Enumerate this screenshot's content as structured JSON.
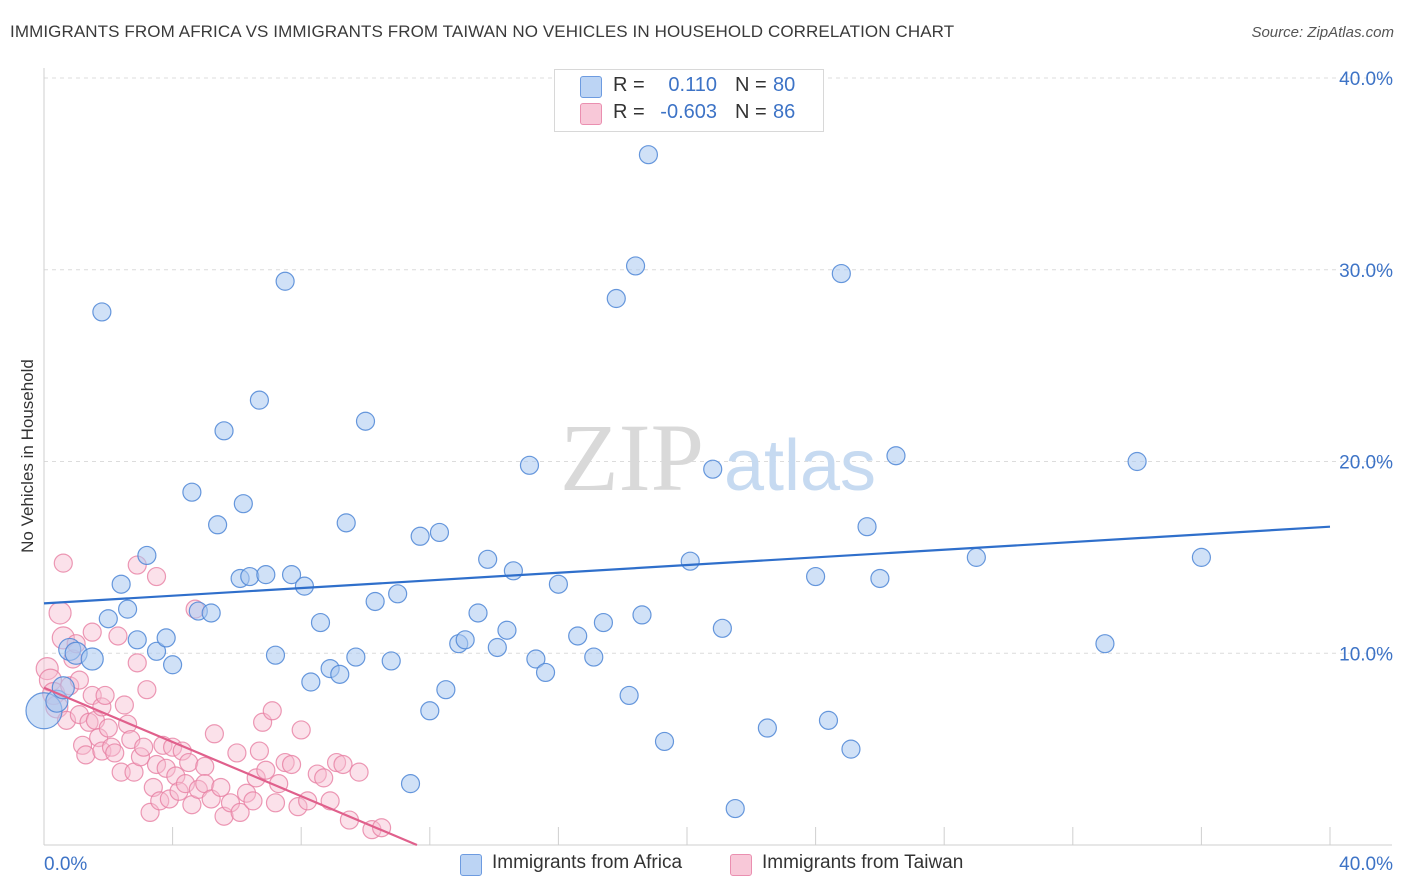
{
  "title": "IMMIGRANTS FROM AFRICA VS IMMIGRANTS FROM TAIWAN NO VEHICLES IN HOUSEHOLD CORRELATION CHART",
  "source": "Source: ZipAtlas.com",
  "watermark": {
    "zip": "ZIP",
    "atlas": "atlas"
  },
  "legend_top": {
    "rows": [
      {
        "r_label": "R =",
        "r_value": "0.110",
        "n_label": "N =",
        "n_value": "80"
      },
      {
        "r_label": "R =",
        "r_value": "-0.603",
        "n_label": "N =",
        "n_value": "86"
      }
    ]
  },
  "colors": {
    "africa_fill": "#a9c8f0",
    "africa_stroke": "#4d86d6",
    "africa_line": "#2f6fcb",
    "taiwan_fill": "#f7bcd0",
    "taiwan_stroke": "#e77fa2",
    "taiwan_line": "#e0608c",
    "tick_text": "#3d73c6",
    "grid": "#dcdcdc"
  },
  "chart_data": {
    "type": "scatter",
    "title": "IMMIGRANTS FROM AFRICA VS IMMIGRANTS FROM TAIWAN NO VEHICLES IN HOUSEHOLD CORRELATION CHART",
    "xlabel": "",
    "ylabel": "No Vehicles in Household",
    "xlim": [
      0,
      40
    ],
    "ylim": [
      0,
      40
    ],
    "x_tick_labels": [
      "0.0%",
      "40.0%"
    ],
    "y_tick_labels": [
      "10.0%",
      "20.0%",
      "30.0%",
      "40.0%"
    ],
    "y_ticks": [
      10,
      20,
      30,
      40
    ],
    "legend_position": "bottom",
    "series": [
      {
        "name": "Immigrants from Africa",
        "R": 0.11,
        "N": 80,
        "trend": {
          "x": [
            0,
            40
          ],
          "y": [
            12.6,
            16.6
          ]
        },
        "points": [
          [
            0.0,
            7.0
          ],
          [
            0.4,
            7.5
          ],
          [
            0.6,
            8.2
          ],
          [
            0.8,
            10.2
          ],
          [
            1.0,
            10.0
          ],
          [
            1.5,
            9.7
          ],
          [
            1.8,
            27.8
          ],
          [
            2.0,
            11.8
          ],
          [
            2.4,
            13.6
          ],
          [
            2.6,
            12.3
          ],
          [
            2.9,
            10.7
          ],
          [
            3.2,
            15.1
          ],
          [
            3.5,
            10.1
          ],
          [
            3.8,
            10.8
          ],
          [
            4.0,
            9.4
          ],
          [
            4.6,
            18.4
          ],
          [
            4.8,
            12.2
          ],
          [
            5.2,
            12.1
          ],
          [
            5.4,
            16.7
          ],
          [
            5.6,
            21.6
          ],
          [
            6.1,
            13.9
          ],
          [
            6.2,
            17.8
          ],
          [
            6.4,
            14.0
          ],
          [
            6.7,
            23.2
          ],
          [
            6.9,
            14.1
          ],
          [
            7.2,
            9.9
          ],
          [
            7.5,
            29.4
          ],
          [
            7.7,
            14.1
          ],
          [
            8.1,
            13.5
          ],
          [
            8.3,
            8.5
          ],
          [
            8.6,
            11.6
          ],
          [
            8.9,
            9.2
          ],
          [
            9.2,
            8.9
          ],
          [
            9.4,
            16.8
          ],
          [
            9.7,
            9.8
          ],
          [
            10.0,
            22.1
          ],
          [
            10.3,
            12.7
          ],
          [
            10.8,
            9.6
          ],
          [
            11.0,
            13.1
          ],
          [
            11.4,
            3.2
          ],
          [
            11.7,
            16.1
          ],
          [
            12.0,
            7.0
          ],
          [
            12.3,
            16.3
          ],
          [
            12.5,
            8.1
          ],
          [
            12.9,
            10.5
          ],
          [
            13.1,
            10.7
          ],
          [
            13.5,
            12.1
          ],
          [
            13.8,
            14.9
          ],
          [
            14.1,
            10.3
          ],
          [
            14.4,
            11.2
          ],
          [
            14.6,
            14.3
          ],
          [
            15.1,
            19.8
          ],
          [
            15.3,
            9.7
          ],
          [
            15.6,
            9.0
          ],
          [
            16.0,
            13.6
          ],
          [
            16.6,
            10.9
          ],
          [
            17.1,
            9.8
          ],
          [
            17.4,
            11.6
          ],
          [
            17.8,
            28.5
          ],
          [
            18.2,
            7.8
          ],
          [
            18.4,
            30.2
          ],
          [
            18.6,
            12.0
          ],
          [
            18.8,
            36.0
          ],
          [
            19.3,
            5.4
          ],
          [
            20.1,
            14.8
          ],
          [
            20.8,
            19.6
          ],
          [
            21.1,
            11.3
          ],
          [
            21.5,
            1.9
          ],
          [
            22.5,
            6.1
          ],
          [
            24.0,
            14.0
          ],
          [
            24.4,
            6.5
          ],
          [
            24.8,
            29.8
          ],
          [
            25.1,
            5.0
          ],
          [
            25.6,
            16.6
          ],
          [
            26.0,
            13.9
          ],
          [
            26.5,
            20.3
          ],
          [
            29.0,
            15.0
          ],
          [
            33.0,
            10.5
          ],
          [
            34.0,
            20.0
          ],
          [
            36.0,
            15.0
          ]
        ]
      },
      {
        "name": "Immigrants from Taiwan",
        "R": -0.603,
        "N": 86,
        "trend": {
          "x": [
            0,
            11.6
          ],
          "y": [
            8.2,
            0.0
          ]
        },
        "points": [
          [
            0.1,
            9.2
          ],
          [
            0.2,
            8.6
          ],
          [
            0.3,
            7.9
          ],
          [
            0.4,
            7.2
          ],
          [
            0.5,
            12.1
          ],
          [
            0.6,
            10.8
          ],
          [
            0.6,
            14.7
          ],
          [
            0.7,
            6.5
          ],
          [
            0.8,
            8.3
          ],
          [
            0.9,
            9.7
          ],
          [
            1.0,
            10.5
          ],
          [
            1.1,
            6.8
          ],
          [
            1.1,
            8.6
          ],
          [
            1.2,
            5.2
          ],
          [
            1.3,
            4.7
          ],
          [
            1.4,
            6.4
          ],
          [
            1.5,
            11.1
          ],
          [
            1.5,
            7.8
          ],
          [
            1.6,
            6.5
          ],
          [
            1.7,
            5.6
          ],
          [
            1.8,
            7.2
          ],
          [
            1.8,
            4.9
          ],
          [
            1.9,
            7.8
          ],
          [
            2.0,
            6.1
          ],
          [
            2.1,
            5.1
          ],
          [
            2.2,
            4.8
          ],
          [
            2.3,
            10.9
          ],
          [
            2.4,
            3.8
          ],
          [
            2.5,
            7.3
          ],
          [
            2.6,
            6.3
          ],
          [
            2.7,
            5.5
          ],
          [
            2.8,
            3.8
          ],
          [
            2.9,
            14.6
          ],
          [
            2.9,
            9.5
          ],
          [
            3.0,
            4.6
          ],
          [
            3.1,
            5.1
          ],
          [
            3.2,
            8.1
          ],
          [
            3.3,
            1.7
          ],
          [
            3.4,
            3.0
          ],
          [
            3.5,
            14.0
          ],
          [
            3.5,
            4.2
          ],
          [
            3.6,
            2.3
          ],
          [
            3.7,
            5.2
          ],
          [
            3.8,
            4.0
          ],
          [
            3.9,
            2.4
          ],
          [
            4.0,
            5.1
          ],
          [
            4.1,
            3.6
          ],
          [
            4.2,
            2.8
          ],
          [
            4.3,
            4.9
          ],
          [
            4.4,
            3.2
          ],
          [
            4.5,
            4.3
          ],
          [
            4.6,
            2.1
          ],
          [
            4.7,
            12.3
          ],
          [
            4.8,
            2.9
          ],
          [
            5.0,
            4.1
          ],
          [
            5.0,
            3.2
          ],
          [
            5.2,
            2.4
          ],
          [
            5.3,
            5.8
          ],
          [
            5.5,
            3.0
          ],
          [
            5.6,
            1.5
          ],
          [
            5.8,
            2.2
          ],
          [
            6.0,
            4.8
          ],
          [
            6.1,
            1.7
          ],
          [
            6.3,
            2.7
          ],
          [
            6.5,
            2.3
          ],
          [
            6.6,
            3.5
          ],
          [
            6.7,
            4.9
          ],
          [
            6.8,
            6.4
          ],
          [
            6.9,
            3.9
          ],
          [
            7.1,
            7.0
          ],
          [
            7.2,
            2.2
          ],
          [
            7.3,
            3.2
          ],
          [
            7.5,
            4.3
          ],
          [
            7.7,
            4.2
          ],
          [
            7.9,
            2.0
          ],
          [
            8.0,
            6.0
          ],
          [
            8.2,
            2.3
          ],
          [
            8.5,
            3.7
          ],
          [
            8.7,
            3.5
          ],
          [
            8.9,
            2.3
          ],
          [
            9.1,
            4.3
          ],
          [
            9.3,
            4.2
          ],
          [
            9.5,
            1.3
          ],
          [
            9.8,
            3.8
          ],
          [
            10.2,
            0.8
          ],
          [
            10.5,
            0.9
          ]
        ]
      }
    ]
  },
  "legend_bottom": {
    "africa_label": "Immigrants from Africa",
    "taiwan_label": "Immigrants from Taiwan"
  }
}
